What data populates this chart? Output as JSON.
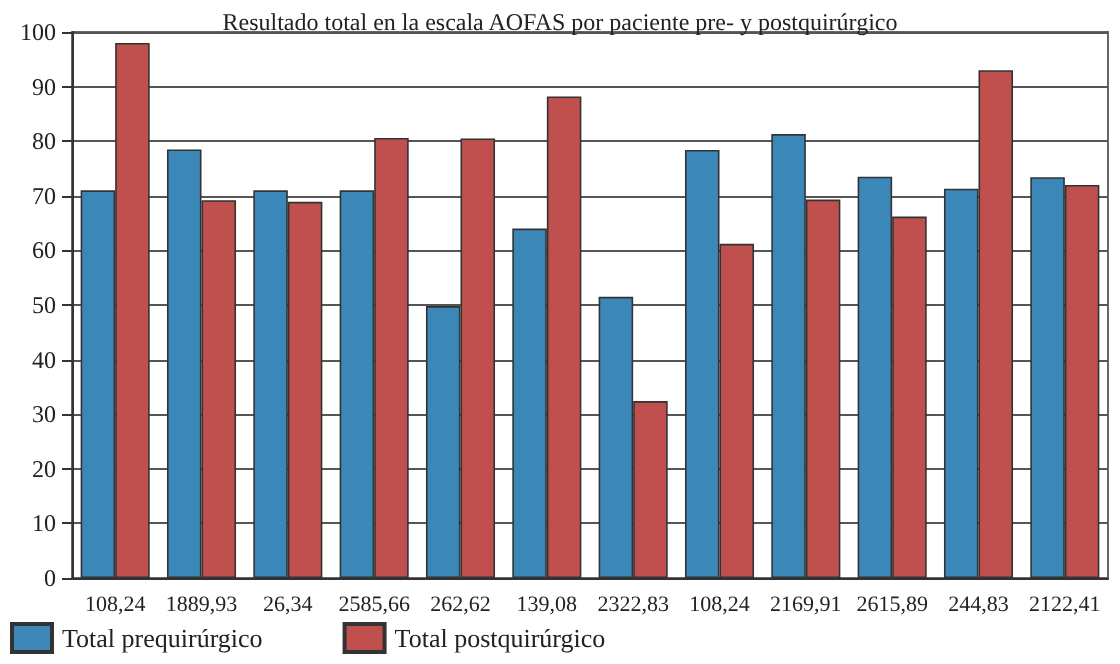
{
  "chart_data": {
    "type": "bar",
    "title": "Resultado total en la escala AOFAS por paciente pre- y postquirúrgico",
    "categories": [
      "108,24",
      "1889,93",
      "26,34",
      "2585,66",
      "262,62",
      "139,08",
      "2322,83",
      "108,24",
      "2169,91",
      "2615,89",
      "244,83",
      "2122,41"
    ],
    "series": [
      {
        "name": "Total prequirúrgico",
        "color": "#3a87b8",
        "values": [
          71,
          78.5,
          71,
          71,
          49.8,
          64,
          51.5,
          78.4,
          81.3,
          73.5,
          71.3,
          73.4
        ]
      },
      {
        "name": "Total postquirúrgico",
        "color": "#c0504d",
        "values": [
          98,
          69.2,
          68.9,
          80.6,
          80.5,
          88.2,
          32.4,
          61.2,
          69.3,
          66.2,
          93,
          72
        ]
      }
    ],
    "ylim": [
      0,
      100
    ],
    "yticks": [
      0,
      10,
      20,
      30,
      40,
      50,
      60,
      70,
      80,
      90,
      100
    ],
    "grid": "y",
    "legend": "bottom left"
  }
}
